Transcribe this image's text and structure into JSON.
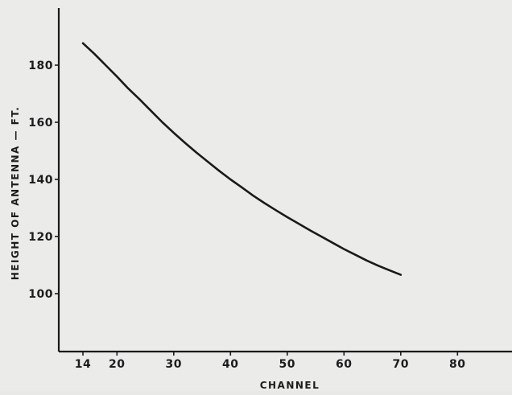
{
  "chart_data": {
    "type": "line",
    "title": "",
    "xlabel": "CHANNEL",
    "ylabel": "HEIGHT OF ANTENNA — FT.",
    "xlim": [
      8,
      92
    ],
    "ylim": [
      80,
      200
    ],
    "x_ticks": [
      14,
      20,
      30,
      40,
      50,
      60,
      70,
      80
    ],
    "y_ticks": [
      100,
      120,
      140,
      160,
      180
    ],
    "grid": false,
    "colors": {
      "line": "#1a1a1a",
      "axis": "#1a1a1a",
      "background": "#ebebea"
    },
    "series": [
      {
        "x": [
          14,
          16,
          18,
          20,
          22,
          24,
          26,
          28,
          30,
          32,
          34,
          36,
          38,
          40,
          42,
          44,
          46,
          48,
          50,
          52,
          54,
          56,
          58,
          60,
          62,
          64,
          66,
          68,
          70
        ],
        "y": [
          187.7,
          184.0,
          180.0,
          176.0,
          171.8,
          168.0,
          164.0,
          160.0,
          156.3,
          152.8,
          149.4,
          146.2,
          143.0,
          140.0,
          137.2,
          134.3,
          131.7,
          129.2,
          126.8,
          124.5,
          122.2,
          120.0,
          117.8,
          115.6,
          113.6,
          111.6,
          109.8,
          108.2,
          106.6
        ]
      }
    ]
  }
}
